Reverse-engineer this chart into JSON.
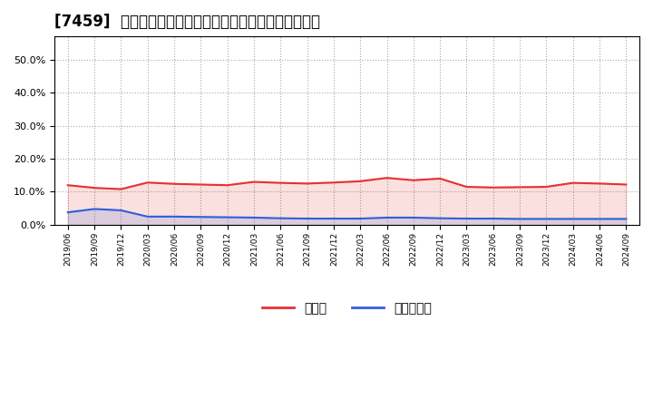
{
  "title": "[7459]  現預金、有利子負債の総資産に対する比率の推移",
  "x_labels": [
    "2019/06",
    "2019/09",
    "2019/12",
    "2020/03",
    "2020/06",
    "2020/09",
    "2020/12",
    "2021/03",
    "2021/06",
    "2021/09",
    "2021/12",
    "2022/03",
    "2022/06",
    "2022/09",
    "2022/12",
    "2023/03",
    "2023/06",
    "2023/09",
    "2023/12",
    "2024/03",
    "2024/06",
    "2024/09"
  ],
  "cash_ratio": [
    0.12,
    0.112,
    0.108,
    0.128,
    0.124,
    0.122,
    0.12,
    0.13,
    0.127,
    0.125,
    0.128,
    0.132,
    0.142,
    0.135,
    0.14,
    0.115,
    0.113,
    0.114,
    0.115,
    0.127,
    0.125,
    0.122
  ],
  "debt_ratio": [
    0.038,
    0.048,
    0.044,
    0.025,
    0.025,
    0.024,
    0.023,
    0.022,
    0.02,
    0.019,
    0.019,
    0.019,
    0.022,
    0.022,
    0.02,
    0.019,
    0.019,
    0.018,
    0.018,
    0.018,
    0.018,
    0.018
  ],
  "cash_color": "#e83030",
  "debt_color": "#3060d8",
  "bg_color": "#ffffff",
  "plot_bg_color": "#ffffff",
  "grid_color": "#aaaaaa",
  "ylim": [
    0.0,
    0.57
  ],
  "yticks": [
    0.0,
    0.1,
    0.2,
    0.3,
    0.4,
    0.5
  ],
  "legend_cash": "現預金",
  "legend_debt": "有利子負債",
  "title_fontsize": 12
}
